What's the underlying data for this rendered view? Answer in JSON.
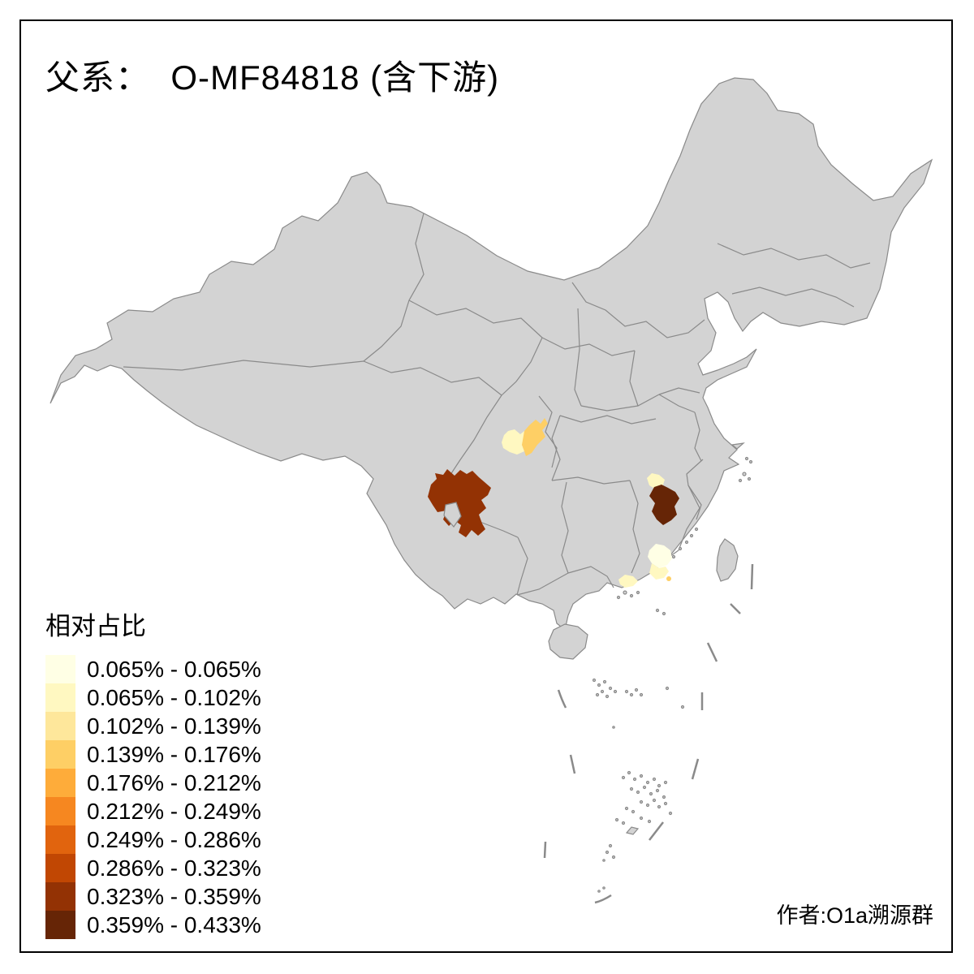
{
  "frame": {
    "title": "父系：  O-MF84818 (含下游)",
    "attribution": "作者:O1a溯源群"
  },
  "legend": {
    "title": "相对占比",
    "items": [
      {
        "label": "0.065% - 0.065%",
        "color": "#FFFFE5"
      },
      {
        "label": "0.065% - 0.102%",
        "color": "#FFF8C1"
      },
      {
        "label": "0.102% - 0.139%",
        "color": "#FEE79B"
      },
      {
        "label": "0.139% - 0.176%",
        "color": "#FECF65"
      },
      {
        "label": "0.176% - 0.212%",
        "color": "#FEAC3A"
      },
      {
        "label": "0.212% - 0.249%",
        "color": "#F68720"
      },
      {
        "label": "0.249% - 0.286%",
        "color": "#E1640E"
      },
      {
        "label": "0.286% - 0.323%",
        "color": "#C14703"
      },
      {
        "label": "0.323% - 0.359%",
        "color": "#933204"
      },
      {
        "label": "0.359% - 0.433%",
        "color": "#662506"
      }
    ]
  },
  "map": {
    "land_color": "#D3D3D3",
    "border_color": "#8A8A8A",
    "sea_color": "#FFFFFF",
    "regions": [
      {
        "name": "sichuan-south",
        "value_range": "0.323% - 0.359%",
        "color": "#933204"
      },
      {
        "name": "chongqing-ne-pale",
        "value_range": "0.065% - 0.102%",
        "color": "#FFF8C1"
      },
      {
        "name": "chongqing-ne-orange",
        "value_range": "0.139% - 0.176%",
        "color": "#FECF65"
      },
      {
        "name": "jiangxi-nw-pale",
        "value_range": "0.065% - 0.102%",
        "color": "#FFF8C1"
      },
      {
        "name": "jiangxi-central-dark",
        "value_range": "0.359% - 0.433%",
        "color": "#662506"
      },
      {
        "name": "fujian-guangdong-cream",
        "value_range": "0.065% - 0.065%",
        "color": "#FFFFE5"
      },
      {
        "name": "guangdong-east-pale",
        "value_range": "0.065% - 0.102%",
        "color": "#FFF8C1"
      },
      {
        "name": "guangdong-coast-dot",
        "value_range": "0.139% - 0.176%",
        "color": "#FECF65"
      },
      {
        "name": "guangdong-prd-pale",
        "value_range": "0.065% - 0.102%",
        "color": "#FFF8C1"
      }
    ]
  }
}
